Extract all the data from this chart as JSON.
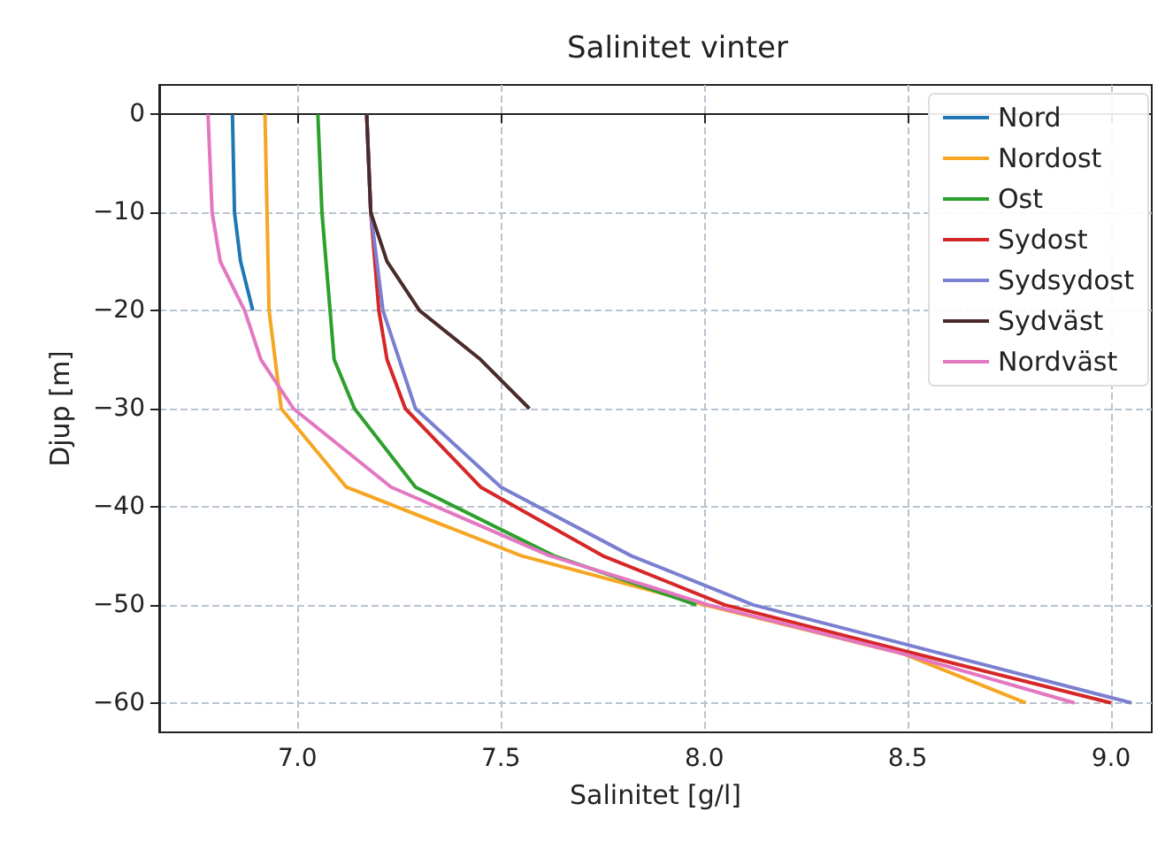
{
  "chart_data": {
    "type": "line",
    "title": "Salinitet vinter",
    "xlabel": "Salinitet [g/l]",
    "ylabel": "Djup [m]",
    "xlim": [
      6.66,
      9.1
    ],
    "ylim": [
      -63,
      3
    ],
    "xticks": [
      {
        "value": 7,
        "label": "7.0"
      },
      {
        "value": 7.5,
        "label": "7.5"
      },
      {
        "value": 8,
        "label": "8.0"
      },
      {
        "value": 8.5,
        "label": "8.5"
      },
      {
        "value": 9,
        "label": "9.0"
      }
    ],
    "yticks": [
      0,
      {
        "value": -10,
        "label": "−10"
      },
      {
        "value": -20,
        "label": "−20"
      },
      {
        "value": -30,
        "label": "−30"
      },
      {
        "value": -40,
        "label": "−40"
      },
      {
        "value": -50,
        "label": "−50"
      },
      {
        "value": -60,
        "label": "−60"
      }
    ],
    "grid": true,
    "legend": "top right",
    "marker": "none",
    "line_style": "solid",
    "series": [
      {
        "name": "Nord",
        "color": "#1f77b4",
        "x": [
          6.84,
          6.845,
          6.86,
          6.89
        ],
        "values": [
          0,
          -10,
          -15,
          -20
        ]
      },
      {
        "name": "Nordost",
        "color": "#f5a623",
        "x": [
          6.92,
          6.925,
          6.93,
          6.96,
          7.12,
          7.55,
          8.0,
          8.49,
          8.79
        ],
        "values": [
          0,
          -10,
          -20,
          -30,
          -38,
          -45,
          -50,
          -55,
          -60
        ]
      },
      {
        "name": "Ost",
        "color": "#2ca02c",
        "x": [
          7.05,
          7.06,
          7.08,
          7.09,
          7.14,
          7.29,
          7.63,
          7.98
        ],
        "values": [
          0,
          -10,
          -20,
          -25,
          -30,
          -38,
          -45,
          -50
        ]
      },
      {
        "name": "Sydost",
        "color": "#d62728",
        "x": [
          7.17,
          7.18,
          7.2,
          7.22,
          7.265,
          7.45,
          7.75,
          8.05,
          8.52,
          9.0
        ],
        "values": [
          0,
          -10,
          -20,
          -25,
          -30,
          -38,
          -45,
          -50,
          -55,
          -60
        ]
      },
      {
        "name": "Sydsydost",
        "color": "#7b7fd0",
        "x": [
          7.17,
          7.18,
          7.21,
          7.29,
          7.5,
          7.82,
          8.12,
          9.05
        ],
        "values": [
          0,
          -10,
          -20,
          -30,
          -38,
          -45,
          -50,
          -60
        ]
      },
      {
        "name": "Sydväst",
        "color": "#4a2a2a",
        "x": [
          7.17,
          7.18,
          7.22,
          7.3,
          7.45,
          7.57
        ],
        "values": [
          0,
          -10,
          -15,
          -20,
          -25,
          -30
        ]
      },
      {
        "name": "Nordväst",
        "color": "#e377c2",
        "x": [
          6.78,
          6.79,
          6.81,
          6.87,
          6.91,
          6.99,
          7.23,
          7.62,
          8.01,
          8.49,
          8.91
        ],
        "values": [
          0,
          -10,
          -15,
          -20,
          -25,
          -30,
          -38,
          -45,
          -50,
          -55,
          -60
        ]
      }
    ]
  }
}
